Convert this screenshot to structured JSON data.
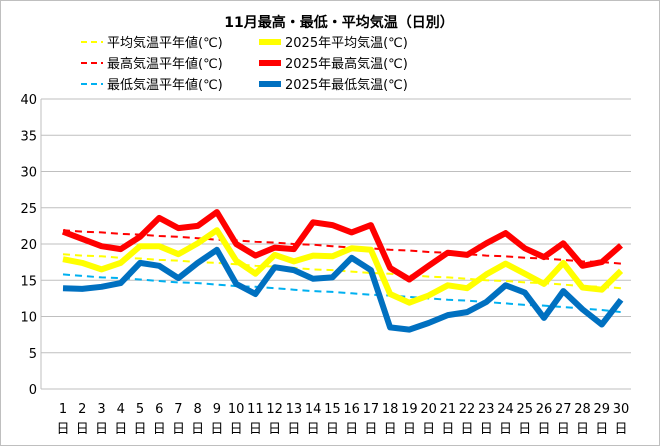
{
  "chart_data": {
    "type": "line",
    "title": "11月最高・最低・平均気温（日別）",
    "xlabel": "",
    "ylabel": "",
    "ylim": [
      0,
      40
    ],
    "yticks": [
      0,
      5,
      10,
      15,
      20,
      25,
      30,
      35,
      40
    ],
    "grid": true,
    "legend_position": "top",
    "categories": [
      "1",
      "2",
      "3",
      "4",
      "5",
      "6",
      "7",
      "8",
      "9",
      "10",
      "11",
      "12",
      "13",
      "14",
      "15",
      "16",
      "17",
      "18",
      "19",
      "20",
      "21",
      "22",
      "23",
      "24",
      "25",
      "26",
      "27",
      "28",
      "29",
      "30"
    ],
    "category_suffix": "日",
    "series": [
      {
        "name": "平均気温平年値(℃)",
        "color": "#ffff00",
        "style": "dashed",
        "values": [
          18.6,
          18.4,
          18.3,
          18.1,
          18.0,
          17.8,
          17.7,
          17.5,
          17.4,
          17.2,
          17.0,
          16.9,
          16.7,
          16.5,
          16.4,
          16.2,
          16.0,
          15.9,
          15.7,
          15.5,
          15.4,
          15.2,
          15.0,
          14.9,
          14.7,
          14.6,
          14.4,
          14.2,
          14.1,
          13.9
        ]
      },
      {
        "name": "2025年平均気温(℃)",
        "color": "#ffff00",
        "style": "solid",
        "values": [
          17.9,
          17.4,
          16.5,
          17.4,
          19.7,
          19.7,
          18.6,
          20.1,
          21.9,
          17.7,
          15.9,
          18.5,
          17.6,
          18.4,
          18.3,
          19.4,
          19.2,
          13.1,
          11.9,
          12.9,
          14.3,
          13.9,
          15.8,
          17.3,
          15.9,
          14.5,
          17.4,
          14.0,
          13.7,
          16.3
        ]
      },
      {
        "name": "最高気温平年値(℃)",
        "color": "#ff0000",
        "style": "dashed",
        "values": [
          21.9,
          21.7,
          21.6,
          21.4,
          21.3,
          21.1,
          21.0,
          20.8,
          20.6,
          20.5,
          20.3,
          20.2,
          20.0,
          19.9,
          19.7,
          19.5,
          19.4,
          19.2,
          19.1,
          18.9,
          18.8,
          18.6,
          18.4,
          18.3,
          18.1,
          18.0,
          17.8,
          17.6,
          17.5,
          17.3
        ]
      },
      {
        "name": "2025年最高気温(℃)",
        "color": "#ff0000",
        "style": "solid",
        "values": [
          21.7,
          20.7,
          19.7,
          19.3,
          21.0,
          23.6,
          22.2,
          22.5,
          24.4,
          20.0,
          18.4,
          19.5,
          19.3,
          23.0,
          22.6,
          21.6,
          22.6,
          16.7,
          15.1,
          17.0,
          18.8,
          18.5,
          20.1,
          21.5,
          19.4,
          18.2,
          20.1,
          17.0,
          17.5,
          19.8
        ]
      },
      {
        "name": "最低気温平年値(℃)",
        "color": "#00b0f0",
        "style": "dashed",
        "values": [
          15.8,
          15.6,
          15.4,
          15.3,
          15.1,
          14.9,
          14.7,
          14.6,
          14.4,
          14.2,
          14.1,
          13.9,
          13.7,
          13.5,
          13.4,
          13.2,
          13.0,
          12.9,
          12.7,
          12.5,
          12.3,
          12.2,
          12.0,
          11.8,
          11.6,
          11.5,
          11.3,
          11.1,
          10.9,
          10.6
        ]
      },
      {
        "name": "2025年最低気温(℃)",
        "color": "#0070c0",
        "style": "solid",
        "values": [
          13.9,
          13.8,
          14.1,
          14.6,
          17.4,
          17.0,
          15.3,
          17.4,
          19.2,
          14.5,
          13.1,
          16.8,
          16.4,
          15.2,
          15.4,
          18.1,
          16.4,
          8.5,
          8.2,
          9.1,
          10.2,
          10.6,
          12.0,
          14.3,
          13.3,
          9.8,
          13.5,
          11.0,
          8.9,
          12.3
        ]
      }
    ]
  }
}
